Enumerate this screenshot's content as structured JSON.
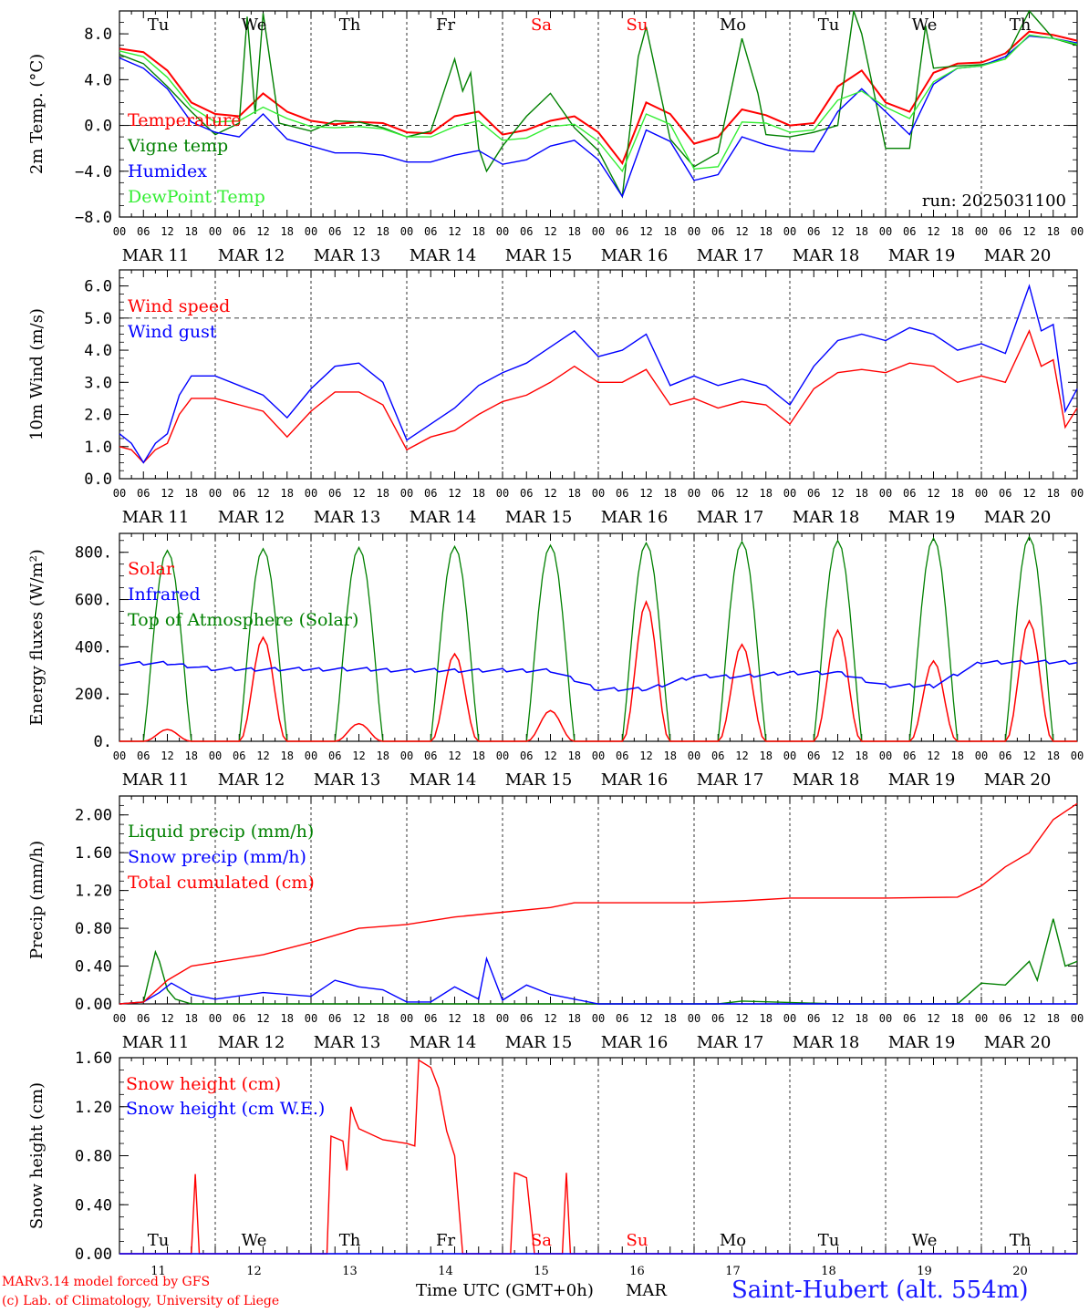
{
  "days": [
    "Tu",
    "We",
    "Th",
    "Fr",
    "Sa",
    "Su",
    "Mo",
    "Tu",
    "We",
    "Th"
  ],
  "day_colors": [
    "#000000",
    "#000000",
    "#000000",
    "#000000",
    "#ff0000",
    "#ff0000",
    "#000000",
    "#000000",
    "#000000",
    "#000000"
  ],
  "dates": [
    "MAR 11",
    "MAR 12",
    "MAR 13",
    "MAR 14",
    "MAR 15",
    "MAR 16",
    "MAR 17",
    "MAR 18",
    "MAR 19",
    "MAR 20"
  ],
  "hour_ticks": [
    "00",
    "06",
    "12",
    "18"
  ],
  "final_hour": "00",
  "footer": {
    "model_line": "MARv3.14 model forced by GFS",
    "copyright": "(c) Lab. of Climatology, University of Liege",
    "time_axis": "Time UTC (GMT+0h)",
    "month": "MAR",
    "station": "Saint-Hubert (alt. 554m)",
    "day_numbers": [
      "11",
      "12",
      "13",
      "14",
      "15",
      "16",
      "17",
      "18",
      "19",
      "20"
    ]
  },
  "chart_data": [
    {
      "type": "line",
      "ylabel": "2m Temp. (°C)",
      "ylim": [
        -8,
        10
      ],
      "ytick_labels": [
        "−8.0",
        "−4.0",
        "0.0",
        "4.0",
        "8.0"
      ],
      "ytick_values": [
        -8,
        -4,
        0,
        4,
        8
      ],
      "run_label": "run: 2025031100",
      "x_unit": "hours since MAR 11 00 UTC",
      "reference_line": 0,
      "series": [
        {
          "name": "Temperature",
          "color": "#ff0000",
          "x": [
            0,
            6,
            12,
            18,
            24,
            30,
            36,
            42,
            48,
            54,
            60,
            66,
            72,
            78,
            84,
            90,
            96,
            102,
            108,
            114,
            120,
            126,
            132,
            138,
            144,
            150,
            156,
            162,
            168,
            174,
            180,
            186,
            192,
            198,
            204,
            210,
            216,
            222,
            228,
            234,
            240
          ],
          "y": [
            6.7,
            6.4,
            4.8,
            2.0,
            1.0,
            0.8,
            2.8,
            1.2,
            0.4,
            0.1,
            0.3,
            0.2,
            -0.6,
            -0.7,
            0.8,
            1.2,
            -0.8,
            -0.4,
            0.4,
            0.8,
            -0.6,
            -3.3,
            2.0,
            1.0,
            -1.6,
            -1.0,
            1.4,
            0.9,
            0.0,
            0.2,
            3.4,
            4.8,
            2.0,
            1.2,
            4.6,
            5.4,
            5.5,
            6.3,
            8.2,
            7.9,
            7.4
          ]
        },
        {
          "name": "Vigne temp",
          "color": "#008000",
          "x": [
            0,
            6,
            12,
            18,
            24,
            30,
            32,
            34,
            36,
            40,
            48,
            54,
            60,
            66,
            72,
            78,
            84,
            86,
            88,
            90,
            92,
            96,
            102,
            108,
            114,
            120,
            126,
            130,
            132,
            138,
            144,
            150,
            156,
            160,
            162,
            168,
            174,
            180,
            184,
            186,
            192,
            198,
            202,
            204,
            210,
            216,
            222,
            228,
            234,
            240
          ],
          "y": [
            6.2,
            5.4,
            3.4,
            1.2,
            -0.8,
            0.2,
            9.5,
            1.0,
            9.8,
            0.2,
            -0.5,
            0.4,
            0.3,
            -0.2,
            -1.0,
            -0.5,
            5.8,
            3.0,
            4.6,
            -2.0,
            -4.0,
            -1.8,
            0.8,
            2.8,
            -0.2,
            -2.2,
            -6.2,
            6.0,
            8.6,
            -1.2,
            -3.6,
            -2.4,
            7.6,
            2.8,
            -0.8,
            -1.0,
            -0.6,
            0.0,
            10.0,
            8.0,
            -2.0,
            -2.0,
            8.7,
            5.0,
            5.2,
            5.3,
            5.8,
            10.0,
            7.6,
            7.0
          ]
        },
        {
          "name": "Humidex",
          "color": "#0000ff",
          "x": [
            0,
            6,
            12,
            18,
            24,
            30,
            36,
            42,
            48,
            54,
            60,
            66,
            72,
            78,
            84,
            90,
            96,
            102,
            108,
            114,
            120,
            126,
            132,
            138,
            144,
            150,
            156,
            162,
            168,
            174,
            180,
            186,
            192,
            198,
            204,
            210,
            216,
            222,
            228,
            234,
            240
          ],
          "y": [
            5.9,
            5.0,
            3.2,
            0.3,
            -0.6,
            -1.0,
            1.0,
            -1.2,
            -1.8,
            -2.4,
            -2.4,
            -2.6,
            -3.2,
            -3.2,
            -2.6,
            -2.2,
            -3.4,
            -3.0,
            -1.8,
            -1.3,
            -3.0,
            -6.2,
            -0.4,
            -1.4,
            -4.8,
            -4.3,
            -1.0,
            -1.7,
            -2.2,
            -2.3,
            1.2,
            3.2,
            1.2,
            -0.8,
            3.6,
            5.0,
            5.2,
            6.0,
            7.8,
            7.6,
            7.2
          ]
        },
        {
          "name": "DewPoint Temp",
          "color": "#33ee33",
          "x": [
            0,
            6,
            12,
            18,
            24,
            30,
            36,
            42,
            48,
            54,
            60,
            66,
            72,
            78,
            84,
            90,
            96,
            102,
            108,
            114,
            120,
            126,
            132,
            138,
            144,
            150,
            156,
            162,
            168,
            174,
            180,
            186,
            192,
            198,
            204,
            210,
            216,
            222,
            228,
            234,
            240
          ],
          "y": [
            6.5,
            6.0,
            4.2,
            1.6,
            0.3,
            0.4,
            1.6,
            0.6,
            -0.1,
            -0.2,
            -0.1,
            -0.3,
            -1.0,
            -1.0,
            -0.1,
            0.4,
            -1.3,
            -1.1,
            -0.1,
            0.1,
            -1.4,
            -4.0,
            1.0,
            0.1,
            -3.8,
            -3.6,
            0.3,
            0.2,
            -0.6,
            -0.4,
            2.2,
            3.0,
            1.6,
            0.6,
            3.8,
            5.0,
            5.2,
            5.8,
            7.9,
            7.6,
            7.1
          ]
        }
      ]
    },
    {
      "type": "line",
      "ylabel": "10m Wind (m/s)",
      "ylim": [
        0,
        6.5
      ],
      "ytick_labels": [
        "0.0",
        "1.0",
        "2.0",
        "3.0",
        "4.0",
        "5.0",
        "6.0"
      ],
      "ytick_values": [
        0,
        1,
        2,
        3,
        4,
        5,
        6
      ],
      "x_unit": "hours since MAR 11 00 UTC",
      "reference_line": 5,
      "series": [
        {
          "name": "Wind speed",
          "color": "#ff0000",
          "x": [
            0,
            3,
            6,
            9,
            12,
            15,
            18,
            24,
            30,
            36,
            42,
            48,
            54,
            60,
            66,
            72,
            78,
            84,
            90,
            96,
            102,
            108,
            114,
            120,
            126,
            132,
            138,
            144,
            150,
            156,
            162,
            168,
            174,
            180,
            186,
            192,
            198,
            204,
            210,
            216,
            222,
            228,
            231,
            234,
            237,
            240
          ],
          "y": [
            1.0,
            0.9,
            0.5,
            0.9,
            1.1,
            2.0,
            2.5,
            2.5,
            2.3,
            2.1,
            1.3,
            2.1,
            2.7,
            2.7,
            2.3,
            0.9,
            1.3,
            1.5,
            2.0,
            2.4,
            2.6,
            3.0,
            3.5,
            3.0,
            3.0,
            3.4,
            2.3,
            2.5,
            2.2,
            2.4,
            2.3,
            1.7,
            2.8,
            3.3,
            3.4,
            3.3,
            3.6,
            3.5,
            3.0,
            3.2,
            3.0,
            4.6,
            3.5,
            3.7,
            1.6,
            2.2
          ]
        },
        {
          "name": "Wind gust",
          "color": "#0000ff",
          "x": [
            0,
            3,
            6,
            9,
            12,
            15,
            18,
            24,
            30,
            36,
            42,
            48,
            54,
            60,
            66,
            72,
            78,
            84,
            90,
            96,
            102,
            108,
            114,
            120,
            126,
            132,
            138,
            144,
            150,
            156,
            162,
            168,
            174,
            180,
            186,
            192,
            198,
            204,
            210,
            216,
            222,
            228,
            231,
            234,
            237,
            240
          ],
          "y": [
            1.4,
            1.1,
            0.5,
            1.1,
            1.4,
            2.6,
            3.2,
            3.2,
            2.9,
            2.6,
            1.9,
            2.8,
            3.5,
            3.6,
            3.0,
            1.2,
            1.7,
            2.2,
            2.9,
            3.3,
            3.6,
            4.1,
            4.6,
            3.8,
            4.0,
            4.5,
            2.9,
            3.2,
            2.9,
            3.1,
            2.9,
            2.3,
            3.5,
            4.3,
            4.5,
            4.3,
            4.7,
            4.5,
            4.0,
            4.2,
            3.9,
            6.0,
            4.6,
            4.8,
            2.1,
            2.8
          ]
        }
      ]
    },
    {
      "type": "line",
      "ylabel": "Energy fluxes (W/m²)",
      "ylim": [
        0,
        880
      ],
      "ytick_labels": [
        "0.",
        "200.",
        "400.",
        "600.",
        "800."
      ],
      "ytick_values": [
        0,
        200,
        400,
        600,
        800
      ],
      "x_unit": "hours since MAR 11 00 UTC",
      "toa_peaks": [
        808,
        815,
        820,
        825,
        830,
        840,
        845,
        850,
        860,
        866
      ],
      "solar_peaks": [
        50,
        440,
        75,
        370,
        130,
        590,
        410,
        470,
        340,
        510
      ],
      "infrared_levels": [
        330,
        305,
        305,
        300,
        300,
        220,
        275,
        290,
        235,
        335
      ],
      "series": [
        {
          "name": "Solar",
          "color": "#ff0000"
        },
        {
          "name": "Infrared",
          "color": "#0000ff"
        },
        {
          "name": "Top of Atmosphere (Solar)",
          "color": "#008000"
        }
      ]
    },
    {
      "type": "line",
      "ylabel": "Precip (mm/h)",
      "ylim": [
        0,
        2.2
      ],
      "ytick_labels": [
        "0.00",
        "0.40",
        "0.80",
        "1.20",
        "1.60",
        "2.00"
      ],
      "ytick_values": [
        0,
        0.4,
        0.8,
        1.2,
        1.6,
        2.0
      ],
      "x_unit": "hours since MAR 11 00 UTC",
      "series": [
        {
          "name": "Liquid precip (mm/h)",
          "color": "#008000",
          "x": [
            0,
            6,
            9,
            10,
            12,
            14,
            18,
            24,
            30,
            60,
            120,
            150,
            156,
            180,
            210,
            216,
            222,
            228,
            230,
            234,
            237,
            240
          ],
          "y": [
            0,
            0.02,
            0.55,
            0.45,
            0.15,
            0.05,
            0,
            0,
            0,
            0,
            0,
            0,
            0.03,
            0,
            0,
            0.22,
            0.2,
            0.45,
            0.25,
            0.9,
            0.4,
            0.45
          ]
        },
        {
          "name": "Snow precip (mm/h)",
          "color": "#0000ff",
          "x": [
            0,
            6,
            10,
            13,
            18,
            24,
            36,
            48,
            54,
            60,
            66,
            72,
            78,
            84,
            90,
            92,
            96,
            102,
            108,
            114,
            120,
            126,
            132,
            138,
            144,
            240
          ],
          "y": [
            0,
            0.02,
            0.12,
            0.22,
            0.1,
            0.05,
            0.12,
            0.08,
            0.25,
            0.18,
            0.15,
            0.02,
            0.02,
            0.18,
            0.05,
            0.48,
            0.04,
            0.2,
            0.1,
            0.05,
            0,
            0,
            0,
            0,
            0,
            0
          ]
        },
        {
          "name": "Total cumulated (cm)",
          "color": "#ff0000",
          "x": [
            0,
            6,
            12,
            18,
            24,
            36,
            48,
            60,
            72,
            84,
            96,
            108,
            114,
            120,
            132,
            144,
            156,
            168,
            180,
            192,
            210,
            216,
            222,
            228,
            234,
            240
          ],
          "y": [
            0,
            0.02,
            0.25,
            0.4,
            0.44,
            0.52,
            0.65,
            0.8,
            0.84,
            0.92,
            0.97,
            1.02,
            1.07,
            1.07,
            1.07,
            1.07,
            1.09,
            1.12,
            1.12,
            1.12,
            1.13,
            1.25,
            1.45,
            1.6,
            1.95,
            2.12
          ]
        }
      ]
    },
    {
      "type": "line",
      "ylabel": "Snow height (cm)",
      "ylim": [
        0,
        1.6
      ],
      "ytick_labels": [
        "0.00",
        "0.40",
        "0.80",
        "1.20",
        "1.60"
      ],
      "ytick_values": [
        0,
        0.4,
        0.8,
        1.2,
        1.6
      ],
      "x_unit": "hours since MAR 11 00 UTC",
      "series": [
        {
          "name": "Snow height (cm)",
          "color": "#ff0000",
          "x": [
            0,
            18,
            19,
            20,
            52,
            53,
            56,
            57,
            58,
            59,
            60,
            66,
            72,
            74,
            75,
            76,
            78,
            80,
            82,
            84,
            86,
            87,
            88,
            98,
            99,
            100,
            102,
            104,
            105,
            106,
            111,
            112,
            113,
            240
          ],
          "y": [
            0,
            0,
            0.65,
            0,
            0,
            0.96,
            0.92,
            0.68,
            1.2,
            1.1,
            1.02,
            0.93,
            0.9,
            0.88,
            1.58,
            1.56,
            1.52,
            1.35,
            1.0,
            0.8,
            0,
            0,
            0,
            0,
            0.66,
            0.65,
            0.62,
            0,
            0,
            0,
            0,
            0.66,
            0,
            0
          ]
        },
        {
          "name": "Snow height (cm W.E.)",
          "color": "#0000ff",
          "x": [
            0,
            240
          ],
          "y": [
            0,
            0
          ]
        }
      ]
    }
  ]
}
